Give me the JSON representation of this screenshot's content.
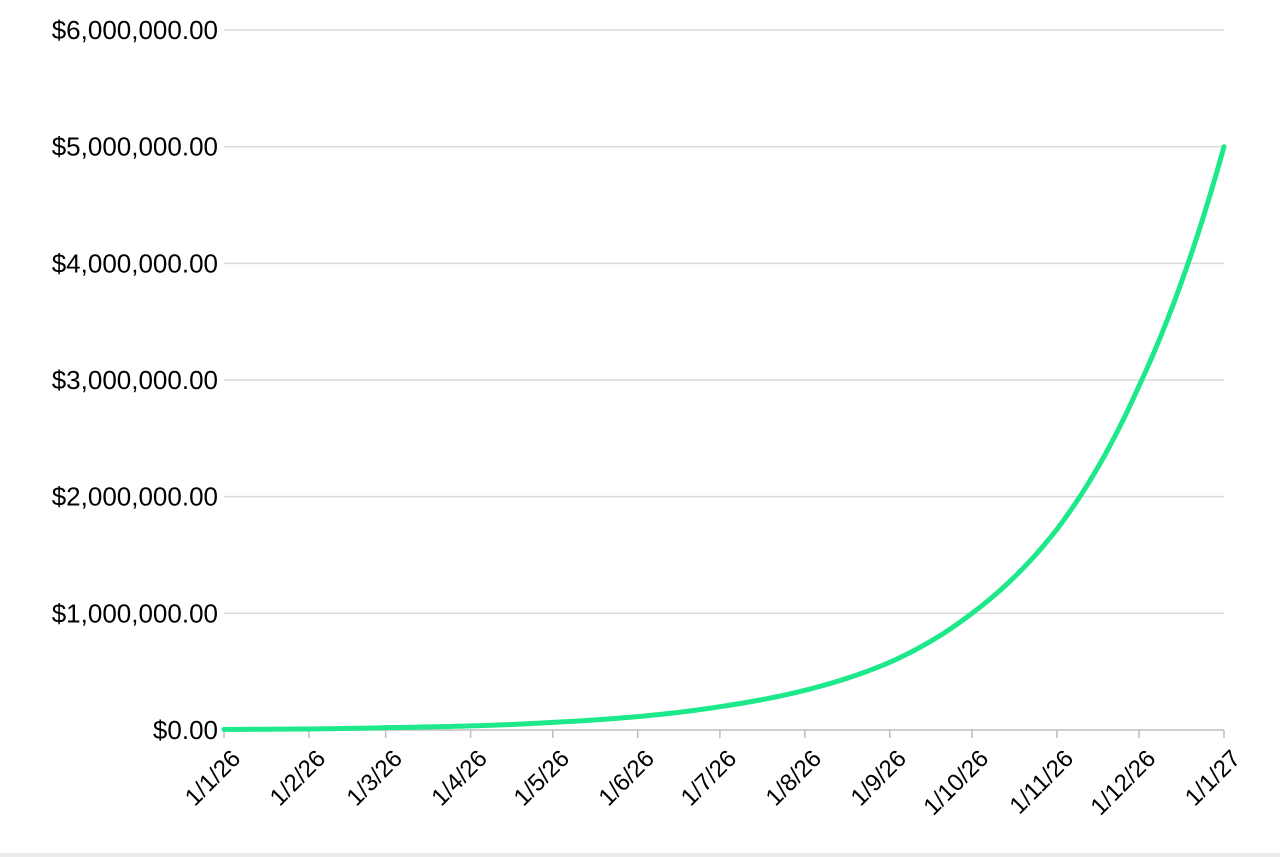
{
  "chart_data": {
    "type": "line",
    "title": "",
    "xlabel": "",
    "ylabel": "",
    "y_tick_labels": [
      "$0.00",
      "$1,000,000.00",
      "$2,000,000.00",
      "$3,000,000.00",
      "$4,000,000.00",
      "$5,000,000.00",
      "$6,000,000.00"
    ],
    "y_ticks": [
      0,
      1000000,
      2000000,
      3000000,
      4000000,
      5000000,
      6000000
    ],
    "ylim": [
      0,
      6000000
    ],
    "x_tick_labels": [
      "1/1/26",
      "1/2/26",
      "1/3/26",
      "1/4/26",
      "1/5/26",
      "1/6/26",
      "1/7/26",
      "1/8/26",
      "1/9/26",
      "1/10/26",
      "1/11/26",
      "1/12/26",
      "1/1/27"
    ],
    "x_ticks": [
      "2026-01-01",
      "2026-02-01",
      "2026-03-01",
      "2026-04-01",
      "2026-05-01",
      "2026-06-01",
      "2026-07-01",
      "2026-08-01",
      "2026-09-01",
      "2026-10-01",
      "2026-11-01",
      "2026-12-01",
      "2027-01-01"
    ],
    "xlim": [
      "2026-01-01",
      "2027-01-01"
    ],
    "grid": true,
    "legend": "none",
    "series": [
      {
        "color": "#1de98b",
        "x": [
          "2026-01-01",
          "2026-02-01",
          "2026-03-01",
          "2026-04-01",
          "2026-05-01",
          "2026-06-01",
          "2026-07-01",
          "2026-08-01",
          "2026-09-01",
          "2026-10-01",
          "2026-11-01",
          "2026-12-01",
          "2027-01-01"
        ],
        "values": [
          5000,
          9000,
          20000,
          35000,
          65000,
          115000,
          200000,
          340000,
          580000,
          1000000,
          1720000,
          2950000,
          5000000
        ]
      }
    ]
  }
}
